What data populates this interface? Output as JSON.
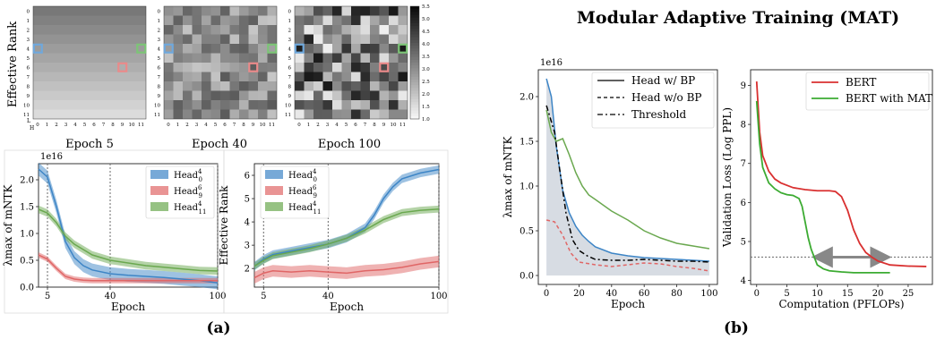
{
  "figure": {
    "title": "Modular Adaptive Training (MAT)",
    "label_a": "(a)",
    "label_b": "(b)"
  },
  "heatmaps": {
    "ylabel": "Effective Rank",
    "corner_L": "L",
    "corner_H": "H",
    "row_ticks": [
      "0",
      "1",
      "2",
      "3",
      "4",
      "5",
      "6",
      "7",
      "8",
      "9",
      "10",
      "11"
    ],
    "col_ticks": [
      "0",
      "1",
      "2",
      "3",
      "4",
      "5",
      "6",
      "7",
      "8",
      "9",
      "10",
      "11"
    ],
    "colorbar_ticks": [
      "1.0",
      "1.5",
      "2.0",
      "2.5",
      "3.0",
      "3.5",
      "4.0",
      "4.5",
      "5.0",
      "5.5"
    ],
    "panels": [
      "Epoch 5",
      "Epoch 40",
      "Epoch 100"
    ]
  },
  "chart_data": [
    {
      "type": "line",
      "id": "a-left",
      "xlabel": "Epoch",
      "ylabel": "λmax of mNTK",
      "multiplier": "1e16",
      "xticks": [
        "5",
        "40",
        "100"
      ],
      "yticks": [
        "0.0",
        "0.5",
        "1.0",
        "1.5",
        "2.0"
      ],
      "xlim": [
        0,
        100
      ],
      "ylim": [
        0,
        2.3
      ],
      "vlines": [
        5,
        40,
        100
      ],
      "legend_position": "top-right",
      "series": [
        {
          "name": "Head",
          "sub": "0",
          "sup": "4",
          "color": "#3d85c6",
          "x": [
            0,
            5,
            10,
            15,
            20,
            25,
            30,
            40,
            50,
            60,
            70,
            80,
            90,
            100
          ],
          "y": [
            2.2,
            2.05,
            1.5,
            0.85,
            0.55,
            0.4,
            0.32,
            0.25,
            0.22,
            0.2,
            0.18,
            0.15,
            0.12,
            0.08
          ],
          "band": 0.12
        },
        {
          "name": "Head",
          "sub": "9",
          "sup": "6",
          "color": "#e06666",
          "x": [
            0,
            5,
            10,
            15,
            20,
            25,
            30,
            40,
            50,
            60,
            70,
            80,
            90,
            100
          ],
          "y": [
            0.6,
            0.52,
            0.35,
            0.2,
            0.15,
            0.13,
            0.12,
            0.12,
            0.12,
            0.12,
            0.12,
            0.12,
            0.12,
            0.12
          ],
          "band": 0.05
        },
        {
          "name": "Head",
          "sub": "11",
          "sup": "4",
          "color": "#6aa84f",
          "x": [
            0,
            5,
            10,
            15,
            20,
            25,
            30,
            40,
            50,
            60,
            70,
            80,
            90,
            100
          ],
          "y": [
            1.45,
            1.38,
            1.2,
            0.95,
            0.8,
            0.7,
            0.6,
            0.5,
            0.45,
            0.4,
            0.37,
            0.34,
            0.31,
            0.3
          ],
          "band": 0.07
        }
      ]
    },
    {
      "type": "line",
      "id": "a-right",
      "xlabel": "Epoch",
      "ylabel": "Effective Rank",
      "xticks": [
        "5",
        "40",
        "100"
      ],
      "yticks": [
        "2",
        "3",
        "4",
        "5",
        "6"
      ],
      "xlim": [
        0,
        100
      ],
      "ylim": [
        1.2,
        6.5
      ],
      "vlines": [
        5,
        40,
        100
      ],
      "legend_position": "top-left",
      "series": [
        {
          "name": "Head",
          "sub": "0",
          "sup": "4",
          "color": "#3d85c6",
          "x": [
            0,
            5,
            10,
            20,
            30,
            40,
            50,
            60,
            65,
            70,
            75,
            80,
            90,
            100
          ],
          "y": [
            2.1,
            2.4,
            2.6,
            2.75,
            2.9,
            3.05,
            3.3,
            3.75,
            4.3,
            5.0,
            5.5,
            5.85,
            6.1,
            6.25
          ],
          "band": 0.18
        },
        {
          "name": "Head",
          "sub": "9",
          "sup": "6",
          "color": "#e06666",
          "x": [
            0,
            5,
            10,
            20,
            30,
            40,
            50,
            60,
            70,
            80,
            90,
            100
          ],
          "y": [
            1.6,
            1.8,
            1.9,
            1.85,
            1.9,
            1.85,
            1.8,
            1.9,
            1.95,
            2.05,
            2.2,
            2.3
          ],
          "band": 0.25
        },
        {
          "name": "Head",
          "sub": "11",
          "sup": "4",
          "color": "#6aa84f",
          "x": [
            0,
            5,
            10,
            20,
            30,
            40,
            50,
            60,
            70,
            80,
            90,
            100
          ],
          "y": [
            2.1,
            2.35,
            2.55,
            2.7,
            2.85,
            3.05,
            3.3,
            3.65,
            4.1,
            4.4,
            4.5,
            4.55
          ],
          "band": 0.15
        }
      ]
    },
    {
      "type": "line",
      "id": "b-left",
      "xlabel": "Epoch",
      "ylabel": "λmax of mNTK",
      "multiplier": "1e16",
      "xticks": [
        "0",
        "20",
        "40",
        "60",
        "80",
        "100"
      ],
      "yticks": [
        "0.0",
        "0.5",
        "1.0",
        "1.5",
        "2.0"
      ],
      "xlim": [
        -5,
        105
      ],
      "ylim": [
        -0.1,
        2.3
      ],
      "legend_position": "top-right",
      "legend": [
        "Head w/ BP",
        "Head w/o BP",
        "Threshold"
      ],
      "series": [
        {
          "name": "blue",
          "color": "#3d85c6",
          "x": [
            0,
            3,
            6,
            10,
            14,
            18,
            22,
            26,
            30,
            40,
            50,
            60,
            70,
            80,
            90,
            100
          ],
          "y": [
            2.2,
            2.0,
            1.45,
            0.95,
            0.7,
            0.55,
            0.45,
            0.38,
            0.32,
            0.25,
            0.22,
            0.2,
            0.19,
            0.18,
            0.17,
            0.16
          ]
        },
        {
          "name": "green",
          "color": "#6aa84f",
          "x": [
            0,
            3,
            6,
            10,
            14,
            18,
            22,
            26,
            30,
            40,
            50,
            60,
            70,
            80,
            90,
            100
          ],
          "y": [
            1.85,
            1.6,
            1.5,
            1.53,
            1.35,
            1.15,
            1.0,
            0.9,
            0.85,
            0.72,
            0.62,
            0.5,
            0.42,
            0.36,
            0.33,
            0.3
          ]
        },
        {
          "name": "Head w/o BP",
          "color": "#e06666",
          "dash": "4,3",
          "x": [
            0,
            5,
            10,
            15,
            20,
            30,
            40,
            50,
            60,
            70,
            80,
            90,
            100
          ],
          "y": [
            0.62,
            0.6,
            0.45,
            0.25,
            0.15,
            0.12,
            0.1,
            0.12,
            0.14,
            0.13,
            0.1,
            0.08,
            0.05
          ]
        },
        {
          "name": "Threshold",
          "color": "#000000",
          "dash": "6,3,2,3",
          "x": [
            0,
            5,
            8,
            12,
            16,
            20,
            25,
            30,
            40,
            50,
            60,
            70,
            80,
            90,
            100
          ],
          "y": [
            1.9,
            1.6,
            1.2,
            0.7,
            0.4,
            0.28,
            0.22,
            0.18,
            0.17,
            0.17,
            0.18,
            0.17,
            0.16,
            0.16,
            0.15
          ]
        }
      ]
    },
    {
      "type": "line",
      "id": "b-right",
      "xlabel": "Computation (PFLOPs)",
      "ylabel": "Validation Loss (Log PPL)",
      "xticks": [
        "0",
        "5",
        "10",
        "15",
        "20",
        "25"
      ],
      "yticks": [
        "4",
        "5",
        "6",
        "7",
        "8",
        "9"
      ],
      "xlim": [
        -1,
        29
      ],
      "ylim": [
        3.9,
        9.4
      ],
      "hline": 4.6,
      "arrow": [
        10.8,
        20.5
      ],
      "legend_position": "top-right",
      "series": [
        {
          "name": "BERT",
          "color": "#d93030",
          "x": [
            0,
            0.5,
            1,
            2,
            3,
            4,
            6,
            8,
            10,
            12,
            13,
            14,
            15,
            16,
            17,
            18,
            19,
            20,
            22,
            25,
            28
          ],
          "y": [
            9.1,
            7.8,
            7.2,
            6.8,
            6.6,
            6.5,
            6.38,
            6.33,
            6.3,
            6.3,
            6.28,
            6.15,
            5.8,
            5.3,
            4.95,
            4.72,
            4.6,
            4.5,
            4.4,
            4.37,
            4.36
          ]
        },
        {
          "name": "BERT with MAT",
          "color": "#3cab32",
          "x": [
            0,
            0.5,
            1,
            2,
            3,
            4,
            5,
            6,
            7,
            7.5,
            8,
            8.5,
            9,
            9.5,
            10,
            11,
            12,
            14,
            16,
            18,
            20,
            22
          ],
          "y": [
            8.6,
            7.5,
            6.9,
            6.5,
            6.35,
            6.25,
            6.2,
            6.18,
            6.1,
            5.9,
            5.5,
            5.1,
            4.8,
            4.6,
            4.4,
            4.3,
            4.25,
            4.22,
            4.2,
            4.2,
            4.2,
            4.2
          ]
        }
      ]
    }
  ]
}
